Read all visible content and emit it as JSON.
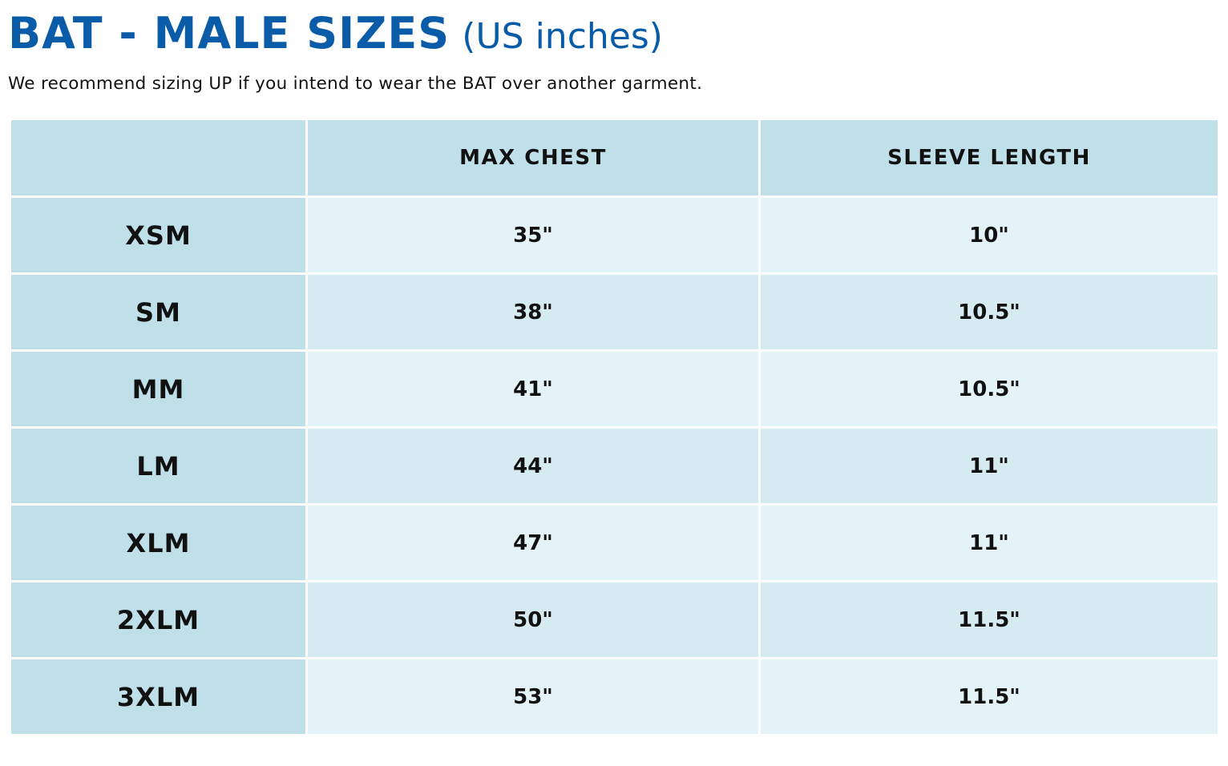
{
  "title": {
    "main": "BAT - MALE SIZES",
    "sub": "(US inches)"
  },
  "subtitle": "We recommend sizing UP if you intend to wear the BAT over another garment.",
  "table": {
    "headers": [
      "",
      "MAX CHEST",
      "SLEEVE LENGTH"
    ],
    "rows": [
      {
        "size": "XSM",
        "chest": "35\"",
        "sleeve": "10\""
      },
      {
        "size": "SM",
        "chest": "38\"",
        "sleeve": "10.5\""
      },
      {
        "size": "MM",
        "chest": "41\"",
        "sleeve": "10.5\""
      },
      {
        "size": "LM",
        "chest": "44\"",
        "sleeve": "11\""
      },
      {
        "size": "XLM",
        "chest": "47\"",
        "sleeve": "11\""
      },
      {
        "size": "2XLM",
        "chest": "50\"",
        "sleeve": "11.5\""
      },
      {
        "size": "3XLM",
        "chest": "53\"",
        "sleeve": "11.5\""
      }
    ]
  },
  "colors": {
    "title": "#0b5ca8",
    "header_bg": "#bfdfe9",
    "row_light": "#e4f3f8",
    "row_dark": "#d5eaf1",
    "text": "#111111"
  }
}
